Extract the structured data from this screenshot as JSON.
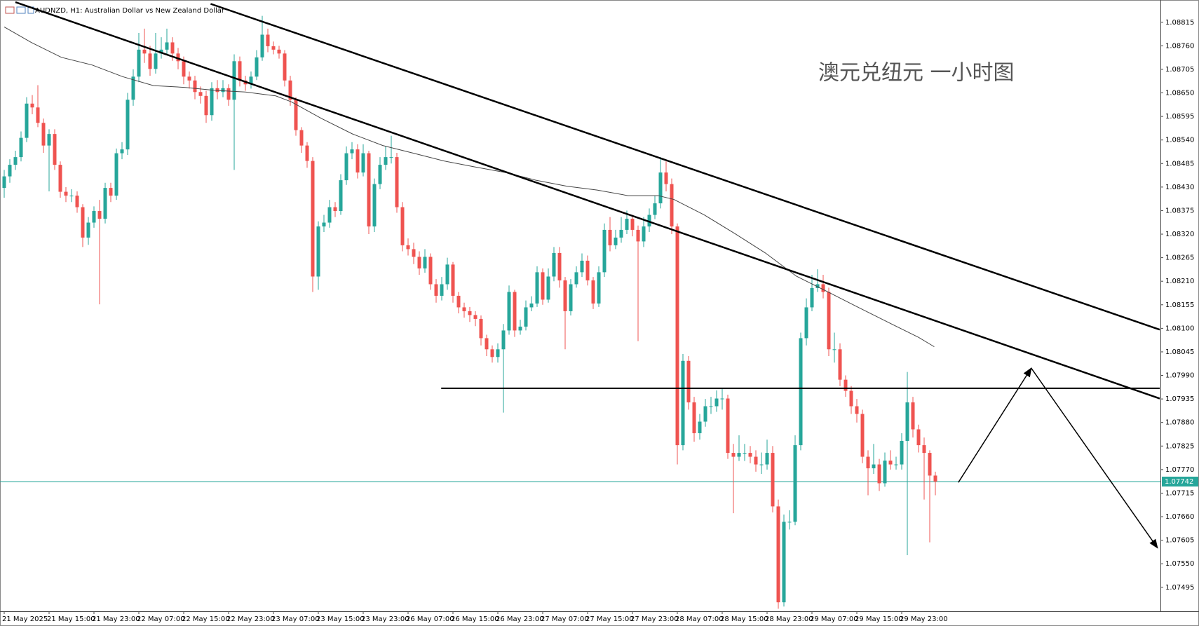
{
  "chart_data": {
    "type": "candlestick",
    "title": "AUDNZD, H1:  Australian Dollar vs New Zealand Dollar",
    "annotation": "澳元兑纽元 一小时图",
    "up_color": "#26a69a",
    "down_color": "#ef5350",
    "categories": [
      "21 May 2025",
      null,
      null,
      null,
      null,
      null,
      null,
      null,
      "21 May 15:00",
      null,
      null,
      null,
      null,
      null,
      null,
      null,
      "21 May 23:00",
      null,
      null,
      null,
      null,
      null,
      null,
      null,
      "22 May 07:00",
      null,
      null,
      null,
      null,
      null,
      null,
      null,
      "22 May 15:00",
      null,
      null,
      null,
      null,
      null,
      null,
      null,
      "22 May 23:00",
      null,
      null,
      null,
      null,
      null,
      null,
      null,
      "23 May 07:00",
      null,
      null,
      null,
      null,
      null,
      null,
      null,
      "23 May 15:00",
      null,
      null,
      null,
      null,
      null,
      null,
      null,
      "23 May 23:00",
      null,
      null,
      null,
      null,
      null,
      null,
      null,
      "26 May 07:00",
      null,
      null,
      null,
      null,
      null,
      null,
      null,
      "26 May 15:00",
      null,
      null,
      null,
      null,
      null,
      null,
      null,
      "26 May 23:00",
      null,
      null,
      null,
      null,
      null,
      null,
      null,
      "27 May 07:00",
      null,
      null,
      null,
      null,
      null,
      null,
      null,
      "27 May 15:00",
      null,
      null,
      null,
      null,
      null,
      null,
      null,
      "27 May 23:00",
      null,
      null,
      null,
      null,
      null,
      null,
      null,
      "28 May 07:00",
      null,
      null,
      null,
      null,
      null,
      null,
      null,
      "28 May 15:00",
      null,
      null,
      null,
      null,
      null,
      null,
      null,
      "28 May 23:00",
      null,
      null,
      null,
      null,
      null,
      null,
      null,
      "29 May 07:00",
      null,
      null,
      null,
      null,
      null,
      null,
      null,
      "29 May 15:00",
      null,
      null,
      null,
      null,
      null,
      null,
      null,
      "29 May 23:00",
      null,
      null,
      null,
      null,
      null,
      null
    ],
    "open": [
      1.08428,
      1.08455,
      1.08482,
      1.085,
      1.08545,
      1.08625,
      1.08616,
      1.0858,
      1.08527,
      1.08554,
      1.08482,
      1.08419,
      1.0841,
      1.0841,
      1.08383,
      1.08312,
      1.08347,
      1.08374,
      1.08356,
      1.08428,
      1.0841,
      1.08509,
      1.08518,
      1.08634,
      1.08688,
      1.08751,
      1.08742,
      1.08706,
      1.08742,
      1.08751,
      1.08768,
      1.08742,
      1.08724,
      1.08688,
      1.08679,
      1.08652,
      1.08643,
      1.08598,
      1.08661,
      1.08652,
      1.08661,
      1.08634,
      1.08724,
      1.08679,
      1.0867,
      1.08688,
      1.08733,
      1.08786,
      1.08759,
      1.08751,
      1.08742,
      1.08679,
      1.08634,
      1.08563,
      1.08527,
      1.08491,
      1.08221,
      1.08338,
      1.08347,
      1.08383,
      1.08374,
      1.08446,
      1.08509,
      1.08518,
      1.08464,
      1.08509,
      1.08338,
      1.08437,
      1.08482,
      1.085,
      1.085,
      1.08383,
      1.08294,
      1.08285,
      1.08267,
      1.0824,
      1.08267,
      1.08203,
      1.08176,
      1.08203,
      1.08249,
      1.08176,
      1.08149,
      1.0814,
      1.08131,
      1.08122,
      1.08077,
      1.08051,
      1.08033,
      1.08051,
      1.08095,
      1.08185,
      1.08095,
      1.08104,
      1.08149,
      1.08158,
      1.08231,
      1.08167,
      1.08221,
      1.08276,
      1.08212,
      1.0814,
      1.08203,
      1.08231,
      1.08258,
      1.08212,
      1.08158,
      1.08231,
      1.0833,
      1.08294,
      1.08312,
      1.0833,
      1.08356,
      1.0833,
      1.08303,
      1.08338,
      1.08365,
      1.08392,
      1.08464,
      1.08437,
      1.08338,
      1.07827,
      1.08024,
      1.07927,
      1.07855,
      1.07882,
      1.07918,
      1.07918,
      1.07936,
      1.07936,
      1.07809,
      1.078,
      1.07809,
      1.07809,
      1.078,
      1.07782,
      1.07782,
      1.07809,
      1.07684,
      1.0746,
      1.07648,
      1.07648,
      1.07827,
      1.08077,
      1.08149,
      1.08194,
      1.08203,
      1.08185,
      1.08051,
      1.08051,
      1.0798,
      1.07954,
      1.07918,
      1.079,
      1.078,
      1.07773,
      1.07782,
      1.07738,
      1.07791,
      1.07782,
      1.07782,
      1.07837,
      1.07927,
      1.07864,
      1.07827,
      1.07809,
      1.07756
    ],
    "high": [
      1.0847,
      1.08495,
      1.08515,
      1.0856,
      1.0864,
      1.08645,
      1.08668,
      1.0859,
      1.08565,
      1.08565,
      1.0849,
      1.0843,
      1.08425,
      1.0842,
      1.0839,
      1.0836,
      1.08385,
      1.084,
      1.0844,
      1.0844,
      1.0852,
      1.08535,
      1.0865,
      1.08705,
      1.0879,
      1.088,
      1.0876,
      1.0879,
      1.0878,
      1.088,
      1.0878,
      1.08755,
      1.08735,
      1.087,
      1.0869,
      1.08665,
      1.08655,
      1.08675,
      1.0868,
      1.0868,
      1.0867,
      1.0874,
      1.08735,
      1.0869,
      1.087,
      1.0875,
      1.0883,
      1.088,
      1.0877,
      1.0876,
      1.0875,
      1.0869,
      1.0864,
      1.0857,
      1.08535,
      1.085,
      1.0835,
      1.08365,
      1.084,
      1.08395,
      1.0846,
      1.08525,
      1.08535,
      1.0853,
      1.0853,
      1.08515,
      1.0845,
      1.085,
      1.08525,
      1.0855,
      1.0851,
      1.08395,
      1.0831,
      1.083,
      1.0828,
      1.08285,
      1.08275,
      1.08215,
      1.0822,
      1.08265,
      1.08255,
      1.08185,
      1.0816,
      1.0815,
      1.0814,
      1.0813,
      1.08085,
      1.0806,
      1.08065,
      1.0811,
      1.082,
      1.0819,
      1.0812,
      1.08165,
      1.08175,
      1.08245,
      1.0824,
      1.0824,
      1.0829,
      1.0829,
      1.0822,
      1.08215,
      1.08245,
      1.08275,
      1.0827,
      1.0822,
      1.08245,
      1.08345,
      1.0836,
      1.0833,
      1.0836,
      1.08375,
      1.08365,
      1.0834,
      1.0836,
      1.0838,
      1.0841,
      1.085,
      1.0849,
      1.0845,
      1.08345,
      1.0804,
      1.08035,
      1.0794,
      1.079,
      1.07935,
      1.0794,
      1.07955,
      1.0796,
      1.07945,
      1.0783,
      1.0785,
      1.0783,
      1.07825,
      1.07815,
      1.0781,
      1.0784,
      1.07825,
      1.077,
      1.07665,
      1.07675,
      1.0785,
      1.0809,
      1.0817,
      1.08225,
      1.08238,
      1.08225,
      1.08195,
      1.0809,
      1.08065,
      1.0799,
      1.07965,
      1.07935,
      1.0791,
      1.07815,
      1.0783,
      1.07795,
      1.0781,
      1.07815,
      1.078,
      1.07855,
      1.07998,
      1.0794,
      1.07875,
      1.07845,
      1.07815,
      1.07765
    ],
    "low": [
      1.08405,
      1.0844,
      1.0847,
      1.0849,
      1.08535,
      1.086,
      1.0857,
      1.0851,
      1.0842,
      1.0847,
      1.08405,
      1.08395,
      1.08395,
      1.0837,
      1.0829,
      1.08295,
      1.08335,
      1.08156,
      1.08345,
      1.08395,
      1.084,
      1.08495,
      1.08505,
      1.0862,
      1.08675,
      1.0872,
      1.0869,
      1.08695,
      1.0873,
      1.0874,
      1.08725,
      1.08705,
      1.0867,
      1.0866,
      1.08635,
      1.08625,
      1.0858,
      1.08585,
      1.08635,
      1.0864,
      1.0862,
      1.0847,
      1.08665,
      1.08655,
      1.0866,
      1.0868,
      1.08725,
      1.08745,
      1.0874,
      1.0873,
      1.08665,
      1.0862,
      1.0855,
      1.0851,
      1.08475,
      1.08185,
      1.0819,
      1.08325,
      1.08335,
      1.0836,
      1.08365,
      1.08435,
      1.08495,
      1.0845,
      1.08455,
      1.0832,
      1.08325,
      1.08425,
      1.0847,
      1.08485,
      1.0837,
      1.0828,
      1.0827,
      1.0825,
      1.08225,
      1.0823,
      1.0819,
      1.0816,
      1.08165,
      1.0819,
      1.0816,
      1.08135,
      1.08125,
      1.08115,
      1.08105,
      1.0806,
      1.08035,
      1.0802,
      1.0802,
      1.07903,
      1.08085,
      1.0808,
      1.08085,
      1.08095,
      1.0814,
      1.0815,
      1.08155,
      1.0816,
      1.0821,
      1.08195,
      1.08051,
      1.0813,
      1.08195,
      1.0822,
      1.082,
      1.08145,
      1.0815,
      1.0822,
      1.0828,
      1.08285,
      1.083,
      1.0832,
      1.08315,
      1.0807,
      1.0829,
      1.08325,
      1.08355,
      1.0838,
      1.0842,
      1.0832,
      1.07782,
      1.07815,
      1.0791,
      1.07835,
      1.0784,
      1.0787,
      1.079,
      1.07905,
      1.0791,
      1.07795,
      1.07668,
      1.0779,
      1.0779,
      1.07785,
      1.07765,
      1.0776,
      1.0777,
      1.0767,
      1.07445,
      1.0745,
      1.0763,
      1.0764,
      1.07815,
      1.0806,
      1.0814,
      1.08185,
      1.0817,
      1.08035,
      1.0802,
      1.07965,
      1.0794,
      1.079,
      1.0788,
      1.07785,
      1.0771,
      1.0776,
      1.0772,
      1.0773,
      1.0777,
      1.0777,
      1.0777,
      1.0757,
      1.07845,
      1.0781,
      1.077,
      1.076,
      1.0771
    ],
    "close": [
      1.08455,
      1.08482,
      1.085,
      1.08545,
      1.08625,
      1.08616,
      1.0858,
      1.08527,
      1.08554,
      1.08482,
      1.08419,
      1.0841,
      1.0841,
      1.08383,
      1.08312,
      1.08347,
      1.08374,
      1.08356,
      1.08428,
      1.0841,
      1.08509,
      1.08518,
      1.08634,
      1.08688,
      1.08751,
      1.08742,
      1.08706,
      1.08742,
      1.08751,
      1.08768,
      1.08742,
      1.08724,
      1.08688,
      1.08679,
      1.08652,
      1.08643,
      1.08598,
      1.08661,
      1.08652,
      1.08661,
      1.08634,
      1.08724,
      1.08679,
      1.0867,
      1.08688,
      1.08733,
      1.08786,
      1.08759,
      1.08751,
      1.08742,
      1.08679,
      1.08634,
      1.08563,
      1.08527,
      1.08491,
      1.08221,
      1.08338,
      1.08347,
      1.08383,
      1.08374,
      1.08446,
      1.08509,
      1.08518,
      1.08464,
      1.08509,
      1.08338,
      1.08437,
      1.08482,
      1.085,
      1.085,
      1.08383,
      1.08294,
      1.08285,
      1.08267,
      1.0824,
      1.08267,
      1.08203,
      1.08176,
      1.08203,
      1.08249,
      1.08176,
      1.08149,
      1.0814,
      1.08131,
      1.08122,
      1.08077,
      1.08051,
      1.08033,
      1.08051,
      1.08095,
      1.08185,
      1.08095,
      1.08104,
      1.08149,
      1.08158,
      1.08231,
      1.08167,
      1.08221,
      1.08276,
      1.08212,
      1.0814,
      1.08203,
      1.08231,
      1.08258,
      1.08212,
      1.08158,
      1.08231,
      1.0833,
      1.08294,
      1.08312,
      1.0833,
      1.08356,
      1.0833,
      1.08303,
      1.08338,
      1.08365,
      1.08392,
      1.08464,
      1.08437,
      1.08338,
      1.07827,
      1.08024,
      1.07927,
      1.07855,
      1.07882,
      1.07918,
      1.07918,
      1.07936,
      1.07936,
      1.07809,
      1.078,
      1.07809,
      1.07809,
      1.078,
      1.07782,
      1.07782,
      1.07809,
      1.07684,
      1.0746,
      1.07648,
      1.07648,
      1.07827,
      1.08077,
      1.08149,
      1.08194,
      1.08203,
      1.08185,
      1.08051,
      1.08051,
      1.0798,
      1.07954,
      1.07918,
      1.079,
      1.078,
      1.07773,
      1.07782,
      1.07738,
      1.07791,
      1.07782,
      1.07782,
      1.07837,
      1.07927,
      1.07864,
      1.07827,
      1.07809,
      1.07756,
      1.07742
    ],
    "moving_average": {
      "color": "#444444",
      "x": [
        0,
        4.8,
        10.2,
        15.7,
        21.1,
        26.6,
        32.1,
        37.5,
        43,
        48.4,
        51.2,
        56.6,
        62.1,
        67.5,
        73,
        78.4,
        83.9,
        89.4,
        94.8,
        100.3,
        105.7,
        111.2,
        116.6,
        119.4,
        124.8,
        130.3,
        135.7,
        141.2,
        146.7,
        152.1,
        157.6,
        163,
        165.8
      ],
      "y": [
        1.08804,
        1.08768,
        1.08733,
        1.08715,
        1.08688,
        1.08667,
        1.08663,
        1.08656,
        1.08652,
        1.08643,
        1.08629,
        1.0859,
        1.08554,
        1.08527,
        1.08509,
        1.08491,
        1.08477,
        1.08464,
        1.08446,
        1.08432,
        1.08423,
        1.0841,
        1.0841,
        1.08401,
        1.08365,
        1.08321,
        1.08276,
        1.08222,
        1.08186,
        1.0815,
        1.08114,
        1.08079,
        1.08057
      ]
    },
    "trendlines": [
      {
        "x": [
          2,
          206
        ],
        "y": [
          1.08862,
          1.07936
        ]
      },
      {
        "x": [
          36.8,
          206
        ],
        "y": [
          1.08858,
          1.08097
        ]
      }
    ],
    "horizontal_line": {
      "x": [
        77.9,
        206
      ],
      "y": 1.0796
    },
    "arrow": {
      "x": [
        170.1,
        183.1,
        205.6
      ],
      "y": [
        1.0774,
        1.08007,
        1.07587
      ]
    },
    "current_price": 1.07742,
    "current_price_color": "#26a69a",
    "ylim": [
      1.07439,
      1.08867
    ],
    "yticks": [
      1.08815,
      {
        "value": 1.0876,
        "label": "1.08760"
      },
      1.08705,
      {
        "value": 1.0865,
        "label": "1.08650"
      },
      1.08595,
      {
        "value": 1.0854,
        "label": "1.08540"
      },
      1.08485,
      {
        "value": 1.0843,
        "label": "1.08430"
      },
      1.08375,
      {
        "value": 1.0832,
        "label": "1.08320"
      },
      1.08265,
      {
        "value": 1.0821,
        "label": "1.08210"
      },
      1.08155,
      {
        "value": 1.081,
        "label": "1.08100"
      },
      1.08045,
      {
        "value": 1.0799,
        "label": "1.07990"
      },
      1.07935,
      {
        "value": 1.0788,
        "label": "1.07880"
      },
      1.07825,
      {
        "value": 1.0777,
        "label": "1.07770"
      },
      1.07715,
      {
        "value": 1.0766,
        "label": "1.07660"
      },
      1.07605,
      {
        "value": 1.0755,
        "label": "1.07550"
      },
      1.07495
    ]
  }
}
